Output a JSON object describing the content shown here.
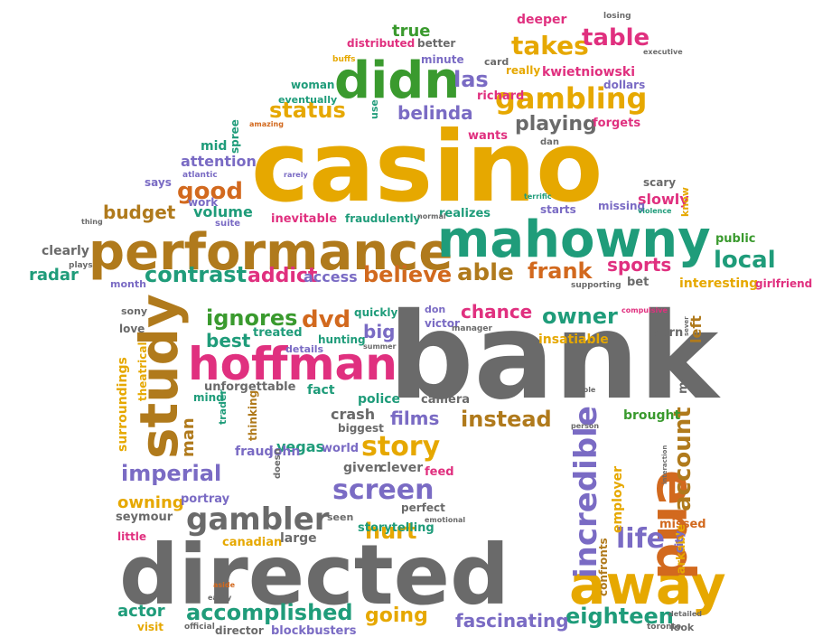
{
  "palette": {
    "orange": "#e6a800",
    "brown": "#b07a1c",
    "green": "#3a9a2e",
    "teal": "#1f9c7a",
    "pink": "#e0307f",
    "purple": "#7a6bc4",
    "gray": "#6a6a6a",
    "rust": "#d2691e"
  },
  "words": [
    {
      "text": "casino",
      "color": "orange"
    },
    {
      "text": "bank",
      "color": "gray"
    },
    {
      "text": "directed",
      "color": "gray"
    },
    {
      "text": "performance",
      "color": "brown"
    },
    {
      "text": "mahowny",
      "color": "teal"
    },
    {
      "text": "hoffman",
      "color": "pink"
    },
    {
      "text": "study",
      "color": "brown"
    },
    {
      "text": "didn",
      "color": "green"
    },
    {
      "text": "away",
      "color": "orange"
    },
    {
      "text": "end",
      "color": "rust"
    },
    {
      "text": "gambling",
      "color": "orange"
    },
    {
      "text": "gambler",
      "color": "gray"
    },
    {
      "text": "story",
      "color": "orange"
    },
    {
      "text": "screen",
      "color": "purple"
    },
    {
      "text": "incredible",
      "color": "purple"
    },
    {
      "text": "accomplished",
      "color": "teal"
    },
    {
      "text": "contrast",
      "color": "teal"
    },
    {
      "text": "takes",
      "color": "orange"
    },
    {
      "text": "table",
      "color": "pink"
    },
    {
      "text": "status",
      "color": "orange"
    },
    {
      "text": "good",
      "color": "rust"
    },
    {
      "text": "local",
      "color": "teal"
    },
    {
      "text": "frank",
      "color": "rust"
    },
    {
      "text": "believe",
      "color": "rust"
    },
    {
      "text": "able",
      "color": "brown"
    },
    {
      "text": "addict",
      "color": "pink"
    },
    {
      "text": "ignores",
      "color": "green"
    },
    {
      "text": "dvd",
      "color": "rust"
    },
    {
      "text": "owner",
      "color": "teal"
    },
    {
      "text": "chance",
      "color": "pink"
    },
    {
      "text": "imperial",
      "color": "purple"
    },
    {
      "text": "life",
      "color": "purple"
    },
    {
      "text": "eighteen",
      "color": "teal"
    },
    {
      "text": "instead",
      "color": "brown"
    },
    {
      "text": "films",
      "color": "purple"
    },
    {
      "text": "fascinating",
      "color": "purple"
    },
    {
      "text": "going",
      "color": "orange"
    },
    {
      "text": "hurt",
      "color": "orange"
    },
    {
      "text": "account",
      "color": "brown"
    },
    {
      "text": "las",
      "color": "purple"
    },
    {
      "text": "playing",
      "color": "gray"
    },
    {
      "text": "belinda",
      "color": "purple"
    },
    {
      "text": "best",
      "color": "teal"
    },
    {
      "text": "big",
      "color": "purple"
    },
    {
      "text": "sports",
      "color": "pink"
    },
    {
      "text": "budget",
      "color": "brown"
    },
    {
      "text": "volume",
      "color": "teal"
    },
    {
      "text": "actor",
      "color": "teal"
    },
    {
      "text": "owning",
      "color": "orange"
    },
    {
      "text": "radar",
      "color": "teal"
    },
    {
      "text": "access",
      "color": "purple"
    },
    {
      "text": "attention",
      "color": "purple"
    },
    {
      "text": "man",
      "color": "brown"
    },
    {
      "text": "vegas",
      "color": "teal"
    },
    {
      "text": "slowly",
      "color": "pink"
    },
    {
      "text": "true",
      "color": "green"
    },
    {
      "text": "kwietniowski",
      "color": "pink"
    },
    {
      "text": "interesting",
      "color": "orange"
    },
    {
      "text": "girlfriend",
      "color": "pink"
    },
    {
      "text": "public",
      "color": "green"
    },
    {
      "text": "employer",
      "color": "orange"
    },
    {
      "text": "missed",
      "color": "rust"
    },
    {
      "text": "brought",
      "color": "green"
    },
    {
      "text": "crash",
      "color": "gray"
    },
    {
      "text": "police",
      "color": "teal"
    },
    {
      "text": "fact",
      "color": "teal"
    },
    {
      "text": "clever",
      "color": "gray"
    },
    {
      "text": "given",
      "color": "gray"
    },
    {
      "text": "fraud",
      "color": "purple"
    },
    {
      "text": "john",
      "color": "purple"
    },
    {
      "text": "canadian",
      "color": "orange"
    },
    {
      "text": "large",
      "color": "gray"
    },
    {
      "text": "seen",
      "color": "gray"
    },
    {
      "text": "perfect",
      "color": "gray"
    },
    {
      "text": "storytelling",
      "color": "teal"
    },
    {
      "text": "blockbusters",
      "color": "purple"
    },
    {
      "text": "director",
      "color": "gray"
    },
    {
      "text": "visit",
      "color": "orange"
    },
    {
      "text": "seymour",
      "color": "gray"
    },
    {
      "text": "little",
      "color": "pink"
    },
    {
      "text": "portray",
      "color": "purple"
    },
    {
      "text": "remarkable",
      "color": "orange"
    },
    {
      "text": "confronts",
      "color": "brown"
    },
    {
      "text": "city",
      "color": "purple"
    },
    {
      "text": "left",
      "color": "brown"
    },
    {
      "text": "burn",
      "color": "gray"
    },
    {
      "text": "make",
      "color": "gray"
    },
    {
      "text": "insatiable",
      "color": "orange"
    },
    {
      "text": "mind",
      "color": "teal"
    },
    {
      "text": "unforgettable",
      "color": "gray"
    },
    {
      "text": "details",
      "color": "purple"
    },
    {
      "text": "treated",
      "color": "teal"
    },
    {
      "text": "love",
      "color": "gray"
    },
    {
      "text": "sony",
      "color": "gray"
    },
    {
      "text": "hunting",
      "color": "teal"
    },
    {
      "text": "quickly",
      "color": "teal"
    },
    {
      "text": "don",
      "color": "purple"
    },
    {
      "text": "victor",
      "color": "purple"
    },
    {
      "text": "manager",
      "color": "gray"
    },
    {
      "text": "camera",
      "color": "gray"
    },
    {
      "text": "biggest",
      "color": "gray"
    },
    {
      "text": "world",
      "color": "purple"
    },
    {
      "text": "feed",
      "color": "pink"
    },
    {
      "text": "thinking",
      "color": "brown"
    },
    {
      "text": "trader",
      "color": "teal"
    },
    {
      "text": "doesn",
      "color": "gray"
    },
    {
      "text": "surroundings",
      "color": "orange"
    },
    {
      "text": "theatrical",
      "color": "orange"
    },
    {
      "text": "clearly",
      "color": "gray"
    },
    {
      "text": "month",
      "color": "purple"
    },
    {
      "text": "inevitable",
      "color": "pink"
    },
    {
      "text": "fraudulently",
      "color": "teal"
    },
    {
      "text": "realizes",
      "color": "teal"
    },
    {
      "text": "starts",
      "color": "purple"
    },
    {
      "text": "missing",
      "color": "purple"
    },
    {
      "text": "scary",
      "color": "gray"
    },
    {
      "text": "forgets",
      "color": "pink"
    },
    {
      "text": "wants",
      "color": "pink"
    },
    {
      "text": "dan",
      "color": "gray"
    },
    {
      "text": "really",
      "color": "orange"
    },
    {
      "text": "richard",
      "color": "pink"
    },
    {
      "text": "dollars",
      "color": "purple"
    },
    {
      "text": "minute",
      "color": "purple"
    },
    {
      "text": "card",
      "color": "gray"
    },
    {
      "text": "woman",
      "color": "teal"
    },
    {
      "text": "eventually",
      "color": "teal"
    },
    {
      "text": "distributed",
      "color": "pink"
    },
    {
      "text": "better",
      "color": "gray"
    },
    {
      "text": "deeper",
      "color": "pink"
    },
    {
      "text": "losing",
      "color": "gray"
    },
    {
      "text": "buffs",
      "color": "orange"
    },
    {
      "text": "executive",
      "color": "gray"
    },
    {
      "text": "mid",
      "color": "teal"
    },
    {
      "text": "says",
      "color": "purple"
    },
    {
      "text": "work",
      "color": "purple"
    },
    {
      "text": "suite",
      "color": "purple"
    },
    {
      "text": "atlantic",
      "color": "purple"
    },
    {
      "text": "spree",
      "color": "teal"
    },
    {
      "text": "amazing",
      "color": "rust"
    },
    {
      "text": "use",
      "color": "teal"
    },
    {
      "text": "rarely",
      "color": "purple"
    },
    {
      "text": "terrific",
      "color": "teal"
    },
    {
      "text": "violence",
      "color": "teal"
    },
    {
      "text": "know",
      "color": "orange"
    },
    {
      "text": "thing",
      "color": "gray"
    },
    {
      "text": "normal",
      "color": "gray"
    },
    {
      "text": "plays",
      "color": "gray"
    },
    {
      "text": "supporting",
      "color": "gray"
    },
    {
      "text": "bet",
      "color": "gray"
    },
    {
      "text": "compulsive",
      "color": "pink"
    },
    {
      "text": "easily",
      "color": "gray"
    },
    {
      "text": "aside",
      "color": "rust"
    },
    {
      "text": "official",
      "color": "gray"
    },
    {
      "text": "toronto",
      "color": "gray"
    },
    {
      "text": "detailed",
      "color": "gray"
    },
    {
      "text": "look",
      "color": "gray"
    },
    {
      "text": "emotional",
      "color": "gray"
    },
    {
      "text": "summer",
      "color": "gray"
    },
    {
      "text": "hole",
      "color": "gray"
    },
    {
      "text": "person",
      "color": "gray"
    },
    {
      "text": "interaction",
      "color": "gray"
    },
    {
      "text": "sever",
      "color": "gray"
    }
  ]
}
